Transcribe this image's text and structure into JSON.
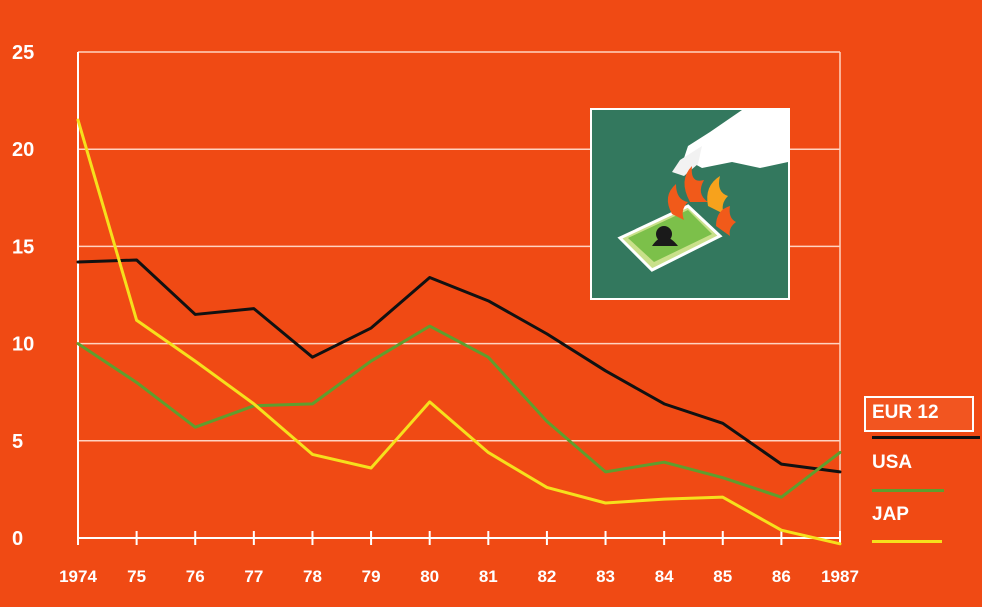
{
  "chart_data": {
    "type": "line",
    "categories": [
      "1974",
      "75",
      "76",
      "77",
      "78",
      "79",
      "80",
      "81",
      "82",
      "83",
      "84",
      "85",
      "86",
      "1987"
    ],
    "ylim": [
      0,
      25
    ],
    "yticks": [
      0,
      5,
      10,
      15,
      20,
      25
    ],
    "grid": true,
    "legend_position": "right",
    "series": [
      {
        "name": "EUR 12",
        "color": "#111111",
        "values": [
          14.2,
          14.3,
          11.5,
          11.8,
          9.3,
          10.8,
          13.4,
          12.2,
          10.5,
          8.6,
          6.9,
          5.9,
          3.8,
          3.4
        ]
      },
      {
        "name": "USA",
        "color": "#5f9e2e",
        "values": [
          10.0,
          8.0,
          5.7,
          6.8,
          6.9,
          9.1,
          10.9,
          9.3,
          6.0,
          3.4,
          3.9,
          3.1,
          2.1,
          4.4
        ]
      },
      {
        "name": "JAP",
        "color": "#f6e01c",
        "values": [
          21.5,
          11.2,
          9.1,
          6.9,
          4.3,
          3.6,
          7.0,
          4.4,
          2.6,
          1.8,
          2.0,
          2.1,
          0.4,
          -0.3
        ]
      }
    ]
  },
  "legend": {
    "eur_label": "EUR 12",
    "usa_label": "USA",
    "jap_label": "JAP"
  },
  "inset": {
    "description_icon": "burning-banknote-icon"
  }
}
